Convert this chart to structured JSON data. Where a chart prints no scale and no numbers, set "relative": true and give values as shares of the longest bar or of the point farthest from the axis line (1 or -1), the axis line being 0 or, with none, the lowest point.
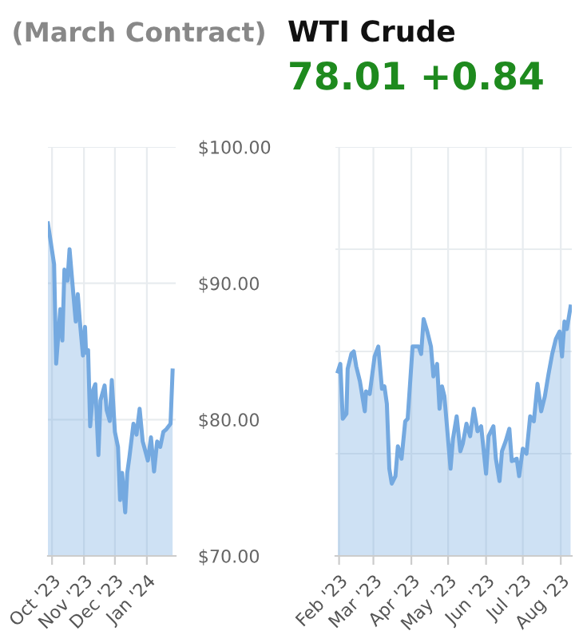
{
  "chart_data": [
    {
      "type": "area",
      "title": "(March Contract)",
      "x": [
        "2023-09-27",
        "2023-10-03",
        "2023-10-05",
        "2023-10-09",
        "2023-10-11",
        "2023-10-13",
        "2023-10-16",
        "2023-10-18",
        "2023-10-21",
        "2023-10-24",
        "2023-10-26",
        "2023-10-28",
        "2023-10-31",
        "2023-11-02",
        "2023-11-03",
        "2023-11-05",
        "2023-11-07",
        "2023-11-10",
        "2023-11-12",
        "2023-11-15",
        "2023-11-17",
        "2023-11-21",
        "2023-11-23",
        "2023-11-26",
        "2023-11-28",
        "2023-12-01",
        "2023-12-04",
        "2023-12-06",
        "2023-12-08",
        "2023-12-11",
        "2023-12-13",
        "2023-12-15",
        "2023-12-19",
        "2023-12-22",
        "2023-12-25",
        "2023-12-28",
        "2024-01-02",
        "2024-01-05",
        "2024-01-08",
        "2024-01-11",
        "2024-01-14",
        "2024-01-17",
        "2024-01-20",
        "2024-01-24",
        "2024-01-26"
      ],
      "series": [
        {
          "color": "#74a9e0",
          "values": [
            94.4,
            91.4,
            84.1,
            88.1,
            85.8,
            91.0,
            90.2,
            92.5,
            89.8,
            87.2,
            89.2,
            87.2,
            84.7,
            86.8,
            84.9,
            85.1,
            79.5,
            82.2,
            82.6,
            77.4,
            81.4,
            82.5,
            80.7,
            79.9,
            82.9,
            79.1,
            78.0,
            74.1,
            76.1,
            73.2,
            76.1,
            77.2,
            79.7,
            78.9,
            80.8,
            78.4,
            77.0,
            78.7,
            76.2,
            78.4,
            78.0,
            79.1,
            79.3,
            79.7,
            83.6
          ]
        }
      ],
      "xlim": [
        "2023-09-27",
        "2024-01-29"
      ],
      "xticks": [
        {
          "value": "2023-10-01",
          "label": "Oct '23"
        },
        {
          "value": "2023-11-01",
          "label": "Nov '23"
        },
        {
          "value": "2023-12-01",
          "label": "Dec '23"
        },
        {
          "value": "2024-01-01",
          "label": "Jan '24"
        }
      ],
      "ylim": [
        70,
        100
      ],
      "yticks": [
        {
          "value": 70,
          "label": "$70.00"
        },
        {
          "value": 80,
          "label": "$80.00"
        },
        {
          "value": 90,
          "label": "$90.00"
        },
        {
          "value": 100,
          "label": "$100.00"
        }
      ],
      "grid": true
    },
    {
      "type": "area",
      "relative": true,
      "title": "WTI Crude",
      "annotations": [
        "78.01 +0.84"
      ],
      "x": [
        "2023-01-31",
        "2023-02-02",
        "2023-02-04",
        "2023-02-07",
        "2023-02-08",
        "2023-02-11",
        "2023-02-13",
        "2023-02-15",
        "2023-02-18",
        "2023-02-22",
        "2023-02-23",
        "2023-02-26",
        "2023-03-02",
        "2023-03-05",
        "2023-03-08",
        "2023-03-10",
        "2023-03-12",
        "2023-03-14",
        "2023-03-16",
        "2023-03-19",
        "2023-03-21",
        "2023-03-24",
        "2023-03-27",
        "2023-03-29",
        "2023-04-02",
        "2023-04-04",
        "2023-04-07",
        "2023-04-09",
        "2023-04-11",
        "2023-04-14",
        "2023-04-17",
        "2023-04-19",
        "2023-04-22",
        "2023-04-24",
        "2023-04-26",
        "2023-04-28",
        "2023-05-03",
        "2023-05-05",
        "2023-05-08",
        "2023-05-11",
        "2023-05-13",
        "2023-05-16",
        "2023-05-19",
        "2023-05-22",
        "2023-05-25",
        "2023-05-28",
        "2023-06-01",
        "2023-06-03",
        "2023-06-07",
        "2023-06-09",
        "2023-06-12",
        "2023-06-14",
        "2023-06-17",
        "2023-06-20",
        "2023-06-22",
        "2023-06-26",
        "2023-06-28",
        "2023-07-01",
        "2023-07-04",
        "2023-07-07",
        "2023-07-10",
        "2023-07-13",
        "2023-07-16",
        "2023-07-19",
        "2023-07-22",
        "2023-07-25",
        "2023-07-28",
        "2023-07-31",
        "2023-08-02",
        "2023-08-04",
        "2023-08-06",
        "2023-08-09"
      ],
      "series": [
        {
          "color": "#74a9e0",
          "values": [
            0.74,
            0.77,
            0.55,
            0.57,
            0.75,
            0.81,
            0.82,
            0.76,
            0.7,
            0.58,
            0.66,
            0.65,
            0.8,
            0.84,
            0.67,
            0.68,
            0.61,
            0.35,
            0.29,
            0.32,
            0.44,
            0.39,
            0.54,
            0.55,
            0.84,
            0.84,
            0.84,
            0.81,
            0.95,
            0.9,
            0.84,
            0.72,
            0.77,
            0.59,
            0.68,
            0.64,
            0.35,
            0.47,
            0.56,
            0.42,
            0.45,
            0.53,
            0.48,
            0.59,
            0.5,
            0.52,
            0.33,
            0.48,
            0.52,
            0.39,
            0.3,
            0.42,
            0.46,
            0.51,
            0.38,
            0.39,
            0.32,
            0.43,
            0.41,
            0.56,
            0.54,
            0.69,
            0.58,
            0.64,
            0.73,
            0.81,
            0.87,
            0.9,
            0.8,
            0.94,
            0.91,
            1.0
          ]
        }
      ],
      "xlim": [
        "2023-01-29",
        "2023-08-10"
      ],
      "xticks": [
        {
          "value": "2023-02-01",
          "label": "Feb '23"
        },
        {
          "value": "2023-03-01",
          "label": "Mar '23"
        },
        {
          "value": "2023-04-01",
          "label": "Apr '23"
        },
        {
          "value": "2023-05-01",
          "label": "May '23"
        },
        {
          "value": "2023-06-01",
          "label": "Jun '23"
        },
        {
          "value": "2023-07-01",
          "label": "Jul '23"
        },
        {
          "value": "2023-08-01",
          "label": "Aug '23"
        }
      ],
      "grid": true
    }
  ]
}
